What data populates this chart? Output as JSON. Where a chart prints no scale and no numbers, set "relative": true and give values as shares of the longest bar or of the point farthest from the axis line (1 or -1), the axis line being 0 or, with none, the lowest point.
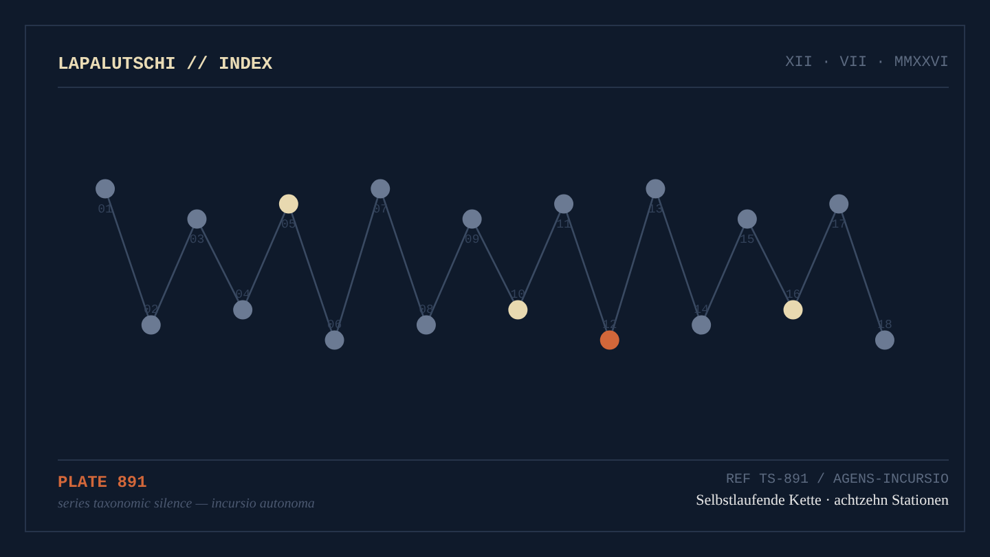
{
  "chart_data": {
    "type": "line",
    "relative": true,
    "title": "LAPALUTSCHI // INDEX",
    "subtitle": "XII · VII · MMXXVI",
    "categories": [
      "01",
      "02",
      "03",
      "04",
      "05",
      "06",
      "07",
      "08",
      "09",
      "10",
      "11",
      "12",
      "13",
      "14",
      "15",
      "16",
      "17",
      "18"
    ],
    "series": [
      {
        "color": "#3a4a62",
        "values": [
          1,
          0.1,
          0.8,
          0.2,
          0.9,
          0,
          1,
          0.1,
          0.8,
          0.2,
          0.9,
          0,
          1,
          0.1,
          0.8,
          0.2,
          0.9,
          0
        ],
        "colors": [
          "#6b7a93",
          "#6b7a93",
          "#6b7a93",
          "#6b7a93",
          "#e8d9b0",
          "#6b7a93",
          "#6b7a93",
          "#6b7a93",
          "#6b7a93",
          "#e8d9b0",
          "#6b7a93",
          "#d2673a",
          "#6b7a93",
          "#6b7a93",
          "#6b7a93",
          "#e8d9b0",
          "#6b7a93",
          "#6b7a93"
        ]
      }
    ],
    "marker": "circle",
    "line_style": "solid",
    "grid": false,
    "annotations": [
      "PLATE 891",
      "series taxonomic silence — incursio autonoma",
      "REF TS-891 / AGENS-INCURSIO",
      "Selbstlaufende Kette · achtzehn Stationen"
    ]
  }
}
